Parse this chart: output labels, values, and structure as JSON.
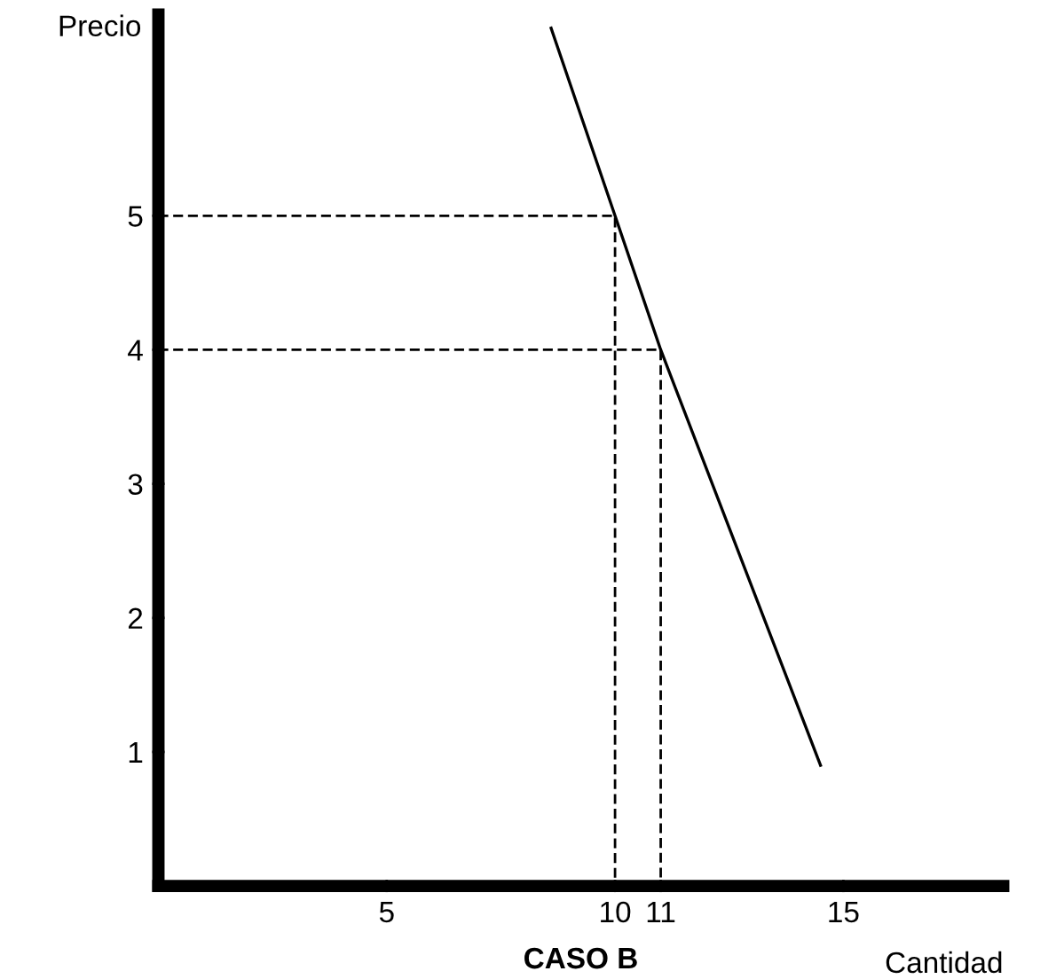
{
  "chart_data": {
    "type": "line",
    "xlabel": "Cantidad",
    "ylabel": "Precio",
    "annotations": [
      "CASO B"
    ],
    "xlim": [
      0,
      18.5
    ],
    "ylim": [
      0,
      6.5
    ],
    "xticks": [
      5,
      10,
      11,
      15
    ],
    "yticks": [
      1,
      2,
      3,
      4,
      5
    ],
    "grid": false,
    "legend": false,
    "marker": "none",
    "series": [
      {
        "color": "#000000",
        "line_style": "solid",
        "x": [
          8.6,
          10,
          11,
          14.5
        ],
        "values": [
          6.4,
          5,
          4,
          0.9
        ]
      },
      {
        "color": "#000000",
        "line_style": "dashed",
        "x": [
          0,
          10,
          10
        ],
        "values": [
          5,
          5,
          0
        ]
      },
      {
        "color": "#000000",
        "line_style": "dashed",
        "x": [
          0,
          11,
          11
        ],
        "values": [
          4,
          4,
          0
        ]
      }
    ]
  }
}
